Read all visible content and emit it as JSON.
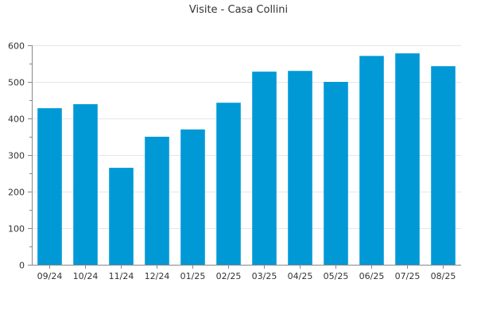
{
  "chart_data": {
    "type": "bar",
    "title": "Visite - Casa Collini",
    "xlabel": "",
    "ylabel": "",
    "categories": [
      "09/24",
      "10/24",
      "11/24",
      "12/24",
      "01/25",
      "02/25",
      "03/25",
      "04/25",
      "05/25",
      "06/25",
      "07/25",
      "08/25"
    ],
    "values": [
      428,
      439,
      265,
      350,
      370,
      443,
      528,
      530,
      500,
      571,
      578,
      543
    ],
    "ylim": [
      0,
      600
    ],
    "yticks": [
      0,
      100,
      200,
      300,
      400,
      500,
      600
    ],
    "grid": true,
    "legend": "none",
    "colors": {
      "bar": "#0099d6"
    }
  }
}
